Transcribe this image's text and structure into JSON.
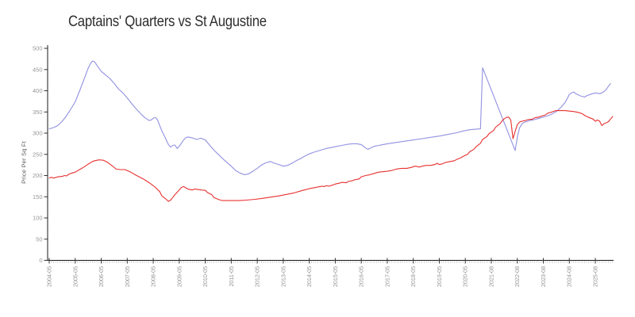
{
  "chart_data": {
    "type": "line",
    "title": "Captains' Quarters vs St Augustine",
    "xlabel": "",
    "ylabel": "Price Per Sq Ft",
    "ylim": [
      0,
      500
    ],
    "grid": false,
    "legend": "none",
    "x_axis": {
      "unit": "year-month",
      "minor_tick_every_points": 1,
      "minor_tick_count": 261,
      "ticks": [
        {
          "index": 0,
          "label": "2004-05"
        },
        {
          "index": 12,
          "label": "2005-05"
        },
        {
          "index": 24,
          "label": "2006-05"
        },
        {
          "index": 36,
          "label": "2007-05"
        },
        {
          "index": 48,
          "label": "2008-05"
        },
        {
          "index": 60,
          "label": "2009-05"
        },
        {
          "index": 72,
          "label": "2010-05"
        },
        {
          "index": 84,
          "label": "2011-05"
        },
        {
          "index": 96,
          "label": "2012-05"
        },
        {
          "index": 108,
          "label": "2013-05"
        },
        {
          "index": 120,
          "label": "2014-05"
        },
        {
          "index": 132,
          "label": "2015-05"
        },
        {
          "index": 144,
          "label": "2016-05"
        },
        {
          "index": 156,
          "label": "2017-05"
        },
        {
          "index": 168,
          "label": "2018-05"
        },
        {
          "index": 180,
          "label": "2019-05"
        },
        {
          "index": 192,
          "label": "2020-05"
        },
        {
          "index": 204,
          "label": "2021-08"
        },
        {
          "index": 216,
          "label": "2022-08"
        },
        {
          "index": 228,
          "label": "2023-08"
        },
        {
          "index": 240,
          "label": "2024-08"
        },
        {
          "index": 252,
          "label": "2025-08"
        }
      ]
    },
    "y_axis": {
      "label": "Price Per Sq Ft",
      "ticks": [
        0,
        50,
        100,
        150,
        200,
        250,
        300,
        350,
        400,
        450,
        500
      ]
    },
    "series": [
      {
        "id": "captains-quarters",
        "name": "Captains' Quarters",
        "color": "#9191e2",
        "points": [
          [
            0,
            310
          ],
          [
            2,
            313
          ],
          [
            4,
            318
          ],
          [
            6,
            328
          ],
          [
            8,
            341
          ],
          [
            10,
            357
          ],
          [
            12,
            374
          ],
          [
            14,
            399
          ],
          [
            16,
            426
          ],
          [
            18,
            453
          ],
          [
            19,
            464
          ],
          [
            20,
            470
          ],
          [
            21,
            468
          ],
          [
            22,
            460
          ],
          [
            24,
            446
          ],
          [
            26,
            437
          ],
          [
            28,
            429
          ],
          [
            30,
            417
          ],
          [
            32,
            404
          ],
          [
            34,
            395
          ],
          [
            36,
            383
          ],
          [
            38,
            370
          ],
          [
            40,
            358
          ],
          [
            42,
            347
          ],
          [
            44,
            337
          ],
          [
            46,
            330
          ],
          [
            47,
            331
          ],
          [
            48,
            335
          ],
          [
            49,
            337
          ],
          [
            50,
            331
          ],
          [
            51,
            318
          ],
          [
            52,
            305
          ],
          [
            53,
            295
          ],
          [
            54,
            284
          ],
          [
            55,
            273
          ],
          [
            56,
            267
          ],
          [
            57,
            271
          ],
          [
            58,
            272
          ],
          [
            59,
            264
          ],
          [
            60,
            269
          ],
          [
            61,
            276
          ],
          [
            62,
            284
          ],
          [
            63,
            289
          ],
          [
            64,
            291
          ],
          [
            66,
            289
          ],
          [
            68,
            285
          ],
          [
            70,
            288
          ],
          [
            72,
            284
          ],
          [
            74,
            272
          ],
          [
            76,
            260
          ],
          [
            78,
            250
          ],
          [
            80,
            240
          ],
          [
            82,
            231
          ],
          [
            84,
            222
          ],
          [
            86,
            212
          ],
          [
            88,
            206
          ],
          [
            90,
            202
          ],
          [
            92,
            204
          ],
          [
            94,
            210
          ],
          [
            96,
            217
          ],
          [
            98,
            225
          ],
          [
            100,
            230
          ],
          [
            102,
            233
          ],
          [
            104,
            229
          ],
          [
            106,
            226
          ],
          [
            108,
            222
          ],
          [
            110,
            224
          ],
          [
            112,
            229
          ],
          [
            114,
            235
          ],
          [
            116,
            240
          ],
          [
            118,
            246
          ],
          [
            120,
            251
          ],
          [
            122,
            255
          ],
          [
            124,
            258
          ],
          [
            126,
            261
          ],
          [
            128,
            264
          ],
          [
            130,
            266
          ],
          [
            132,
            268
          ],
          [
            134,
            270
          ],
          [
            136,
            272
          ],
          [
            138,
            274
          ],
          [
            140,
            275
          ],
          [
            142,
            275
          ],
          [
            144,
            273
          ],
          [
            145,
            269
          ],
          [
            146,
            265
          ],
          [
            147,
            262
          ],
          [
            148,
            264
          ],
          [
            149,
            267
          ],
          [
            150,
            269
          ],
          [
            152,
            271
          ],
          [
            154,
            273
          ],
          [
            156,
            275
          ],
          [
            160,
            278
          ],
          [
            164,
            281
          ],
          [
            168,
            284
          ],
          [
            172,
            287
          ],
          [
            176,
            290
          ],
          [
            180,
            293
          ],
          [
            184,
            297
          ],
          [
            188,
            301
          ],
          [
            191,
            305
          ],
          [
            194,
            308
          ],
          [
            196,
            309
          ],
          [
            199,
            310
          ],
          [
            200,
            454
          ],
          [
            215,
            259
          ],
          [
            216,
            290
          ],
          [
            217,
            312
          ],
          [
            218,
            321
          ],
          [
            219,
            325
          ],
          [
            220,
            327
          ],
          [
            222,
            330
          ],
          [
            224,
            332
          ],
          [
            226,
            335
          ],
          [
            228,
            338
          ],
          [
            230,
            341
          ],
          [
            232,
            345
          ],
          [
            234,
            351
          ],
          [
            236,
            360
          ],
          [
            238,
            372
          ],
          [
            239,
            381
          ],
          [
            240,
            391
          ],
          [
            241,
            395
          ],
          [
            242,
            397
          ],
          [
            243,
            393
          ],
          [
            245,
            388
          ],
          [
            247,
            385
          ],
          [
            248,
            388
          ],
          [
            250,
            392
          ],
          [
            252,
            395
          ],
          [
            254,
            393
          ],
          [
            255,
            395
          ],
          [
            256,
            398
          ],
          [
            257,
            403
          ],
          [
            258,
            410
          ],
          [
            259,
            417
          ]
        ]
      },
      {
        "id": "st-augustine",
        "name": "St Augustine",
        "color": "#e83030",
        "points": [
          [
            0,
            194
          ],
          [
            1,
            196
          ],
          [
            2,
            194
          ],
          [
            4,
            197
          ],
          [
            6,
            198
          ],
          [
            7,
            200
          ],
          [
            8,
            199
          ],
          [
            9,
            203
          ],
          [
            10,
            205
          ],
          [
            12,
            208
          ],
          [
            14,
            214
          ],
          [
            16,
            220
          ],
          [
            18,
            227
          ],
          [
            20,
            233
          ],
          [
            21,
            235
          ],
          [
            23,
            237
          ],
          [
            25,
            236
          ],
          [
            27,
            231
          ],
          [
            29,
            223
          ],
          [
            31,
            215
          ],
          [
            33,
            214
          ],
          [
            35,
            214
          ],
          [
            38,
            207
          ],
          [
            40,
            201
          ],
          [
            43,
            193
          ],
          [
            45,
            187
          ],
          [
            47,
            180
          ],
          [
            49,
            172
          ],
          [
            51,
            162
          ],
          [
            52,
            152
          ],
          [
            54,
            144
          ],
          [
            55,
            139
          ],
          [
            56,
            142
          ],
          [
            57,
            148
          ],
          [
            58,
            155
          ],
          [
            60,
            166
          ],
          [
            61,
            172
          ],
          [
            62,
            174
          ],
          [
            63,
            171
          ],
          [
            64,
            168
          ],
          [
            66,
            166
          ],
          [
            67,
            168
          ],
          [
            69,
            167
          ],
          [
            70,
            166
          ],
          [
            72,
            165
          ],
          [
            73,
            160
          ],
          [
            75,
            155
          ],
          [
            76,
            148
          ],
          [
            78,
            144
          ],
          [
            79,
            142
          ],
          [
            80,
            141
          ],
          [
            84,
            141
          ],
          [
            88,
            141
          ],
          [
            91,
            142
          ],
          [
            95,
            144
          ],
          [
            98,
            146
          ],
          [
            102,
            149
          ],
          [
            106,
            152
          ],
          [
            109,
            155
          ],
          [
            113,
            159
          ],
          [
            117,
            165
          ],
          [
            120,
            169
          ],
          [
            124,
            173
          ],
          [
            126,
            175
          ],
          [
            127,
            174
          ],
          [
            128,
            176
          ],
          [
            129,
            175
          ],
          [
            131,
            178
          ],
          [
            132,
            180
          ],
          [
            134,
            182
          ],
          [
            135,
            184
          ],
          [
            137,
            183
          ],
          [
            138,
            186
          ],
          [
            140,
            188
          ],
          [
            141,
            190
          ],
          [
            143,
            192
          ],
          [
            144,
            197
          ],
          [
            146,
            200
          ],
          [
            148,
            202
          ],
          [
            150,
            205
          ],
          [
            152,
            208
          ],
          [
            154,
            209
          ],
          [
            156,
            210
          ],
          [
            158,
            212
          ],
          [
            160,
            215
          ],
          [
            161,
            216
          ],
          [
            163,
            217
          ],
          [
            165,
            217
          ],
          [
            167,
            219
          ],
          [
            168,
            221
          ],
          [
            169,
            222
          ],
          [
            170,
            221
          ],
          [
            171,
            220
          ],
          [
            172,
            222
          ],
          [
            174,
            224
          ],
          [
            176,
            224
          ],
          [
            178,
            226
          ],
          [
            179,
            229
          ],
          [
            180,
            226
          ],
          [
            181,
            227
          ],
          [
            182,
            229
          ],
          [
            183,
            231
          ],
          [
            185,
            233
          ],
          [
            187,
            235
          ],
          [
            188,
            238
          ],
          [
            190,
            242
          ],
          [
            191,
            245
          ],
          [
            193,
            250
          ],
          [
            194,
            256
          ],
          [
            196,
            262
          ],
          [
            197,
            268
          ],
          [
            199,
            276
          ],
          [
            200,
            285
          ],
          [
            202,
            292
          ],
          [
            203,
            299
          ],
          [
            205,
            306
          ],
          [
            206,
            314
          ],
          [
            208,
            322
          ],
          [
            209,
            329
          ],
          [
            210,
            334
          ],
          [
            211,
            337
          ],
          [
            212,
            338
          ],
          [
            213,
            331
          ],
          [
            214,
            287
          ],
          [
            215,
            304
          ],
          [
            216,
            320
          ],
          [
            217,
            326
          ],
          [
            218,
            328
          ],
          [
            220,
            330
          ],
          [
            221,
            332
          ],
          [
            223,
            333
          ],
          [
            224,
            336
          ],
          [
            226,
            338
          ],
          [
            227,
            340
          ],
          [
            229,
            343
          ],
          [
            230,
            347
          ],
          [
            232,
            350
          ],
          [
            233,
            352
          ],
          [
            234,
            353
          ],
          [
            236,
            353
          ],
          [
            238,
            353
          ],
          [
            240,
            352
          ],
          [
            242,
            351
          ],
          [
            244,
            349
          ],
          [
            246,
            346
          ],
          [
            247,
            342
          ],
          [
            249,
            337
          ],
          [
            251,
            333
          ],
          [
            252,
            328
          ],
          [
            253,
            331
          ],
          [
            254,
            328
          ],
          [
            255,
            318
          ],
          [
            256,
            322
          ],
          [
            258,
            327
          ],
          [
            259,
            333
          ],
          [
            260,
            339
          ]
        ]
      }
    ]
  }
}
